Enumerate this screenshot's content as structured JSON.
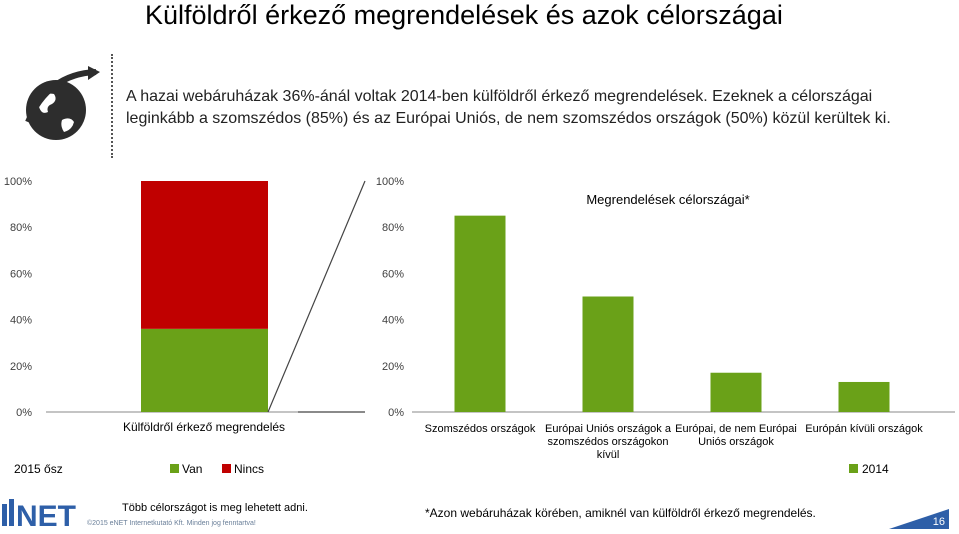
{
  "page": {
    "title": "Külföldről érkező megrendelések és azok célországai",
    "intro_line1": "A hazai webáruházak 36%-ánál voltak 2014-ben külföldről érkező megrendelések. Ezeknek a célországai",
    "intro_line2": "leginkább a szomszédos (85%) és az Európai Uniós, de nem szomszédos országok (50%) közül kerültek ki.",
    "footnote_left": "Több célországot is meg lehetett adni.",
    "footnote_right": "*Azon webáruházak körében, amiknél van külföldről érkező megrendelés.",
    "copyright": "©2015 eNET Internetkutató Kft. Minden jog fenntartva!",
    "page_number": "16",
    "brand": "NET"
  },
  "colors": {
    "green": "#6aa118",
    "red": "#c00000",
    "axis_text": "#404040",
    "page_number_bg": "#2e5fa8"
  },
  "chart_data": [
    {
      "type": "bar",
      "stacked": true,
      "categories": [
        "Külföldről érkező megrendelés"
      ],
      "series": [
        {
          "name": "Van",
          "values": [
            36
          ],
          "color": "#6aa118"
        },
        {
          "name": "Nincs",
          "values": [
            64
          ],
          "color": "#c00000"
        }
      ],
      "legend_title": "2015 ősz",
      "legend_position": "bottom",
      "ylim": [
        0,
        100
      ],
      "yticks": [
        "0%",
        "20%",
        "40%",
        "60%",
        "80%",
        "100%"
      ]
    },
    {
      "type": "bar",
      "title": "Megrendelések célországai*",
      "categories": [
        "Szomszédos országok",
        "Európai Uniós országok a szomszédos országokon kívül",
        "Európai, de nem Európai Uniós országok",
        "Európán kívüli országok"
      ],
      "category_lines": [
        [
          "Szomszédos országok"
        ],
        [
          "Európai Uniós országok a",
          "szomszédos országokon",
          "kívül"
        ],
        [
          "Európai, de nem Európai",
          "Uniós országok"
        ],
        [
          "Európán kívüli országok"
        ]
      ],
      "series": [
        {
          "name": "2014",
          "values": [
            85,
            50,
            17,
            13
          ],
          "color": "#6aa118"
        }
      ],
      "legend_position": "bottom-right",
      "ylim": [
        0,
        100
      ],
      "yticks": [
        "0%",
        "20%",
        "40%",
        "60%",
        "80%",
        "100%"
      ]
    }
  ]
}
